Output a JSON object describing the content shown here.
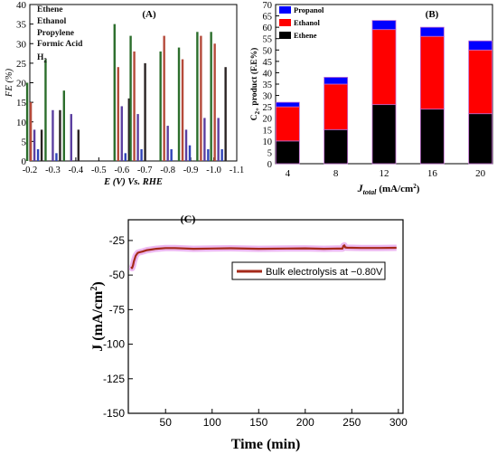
{
  "chart_data": [
    {
      "panel": "(A)",
      "type": "bar",
      "xlabel": "E (V) Vs. RHE",
      "ylabel": "FE (%)",
      "xlim": [
        -0.2,
        -1.1
      ],
      "ylim": [
        0,
        40
      ],
      "xticks": [
        "-0.2",
        "-0.3",
        "-0.4",
        "-0.5",
        "-0.6",
        "-0.7",
        "-0.8",
        "-0.9",
        "-1.0",
        "-1.1"
      ],
      "yticks": [
        "0",
        "5",
        "10",
        "15",
        "20",
        "25",
        "30",
        "35",
        "40"
      ],
      "x": [
        -0.22,
        -0.3,
        -0.38,
        -0.6,
        -0.67,
        -0.8,
        -0.88,
        -0.96,
        -1.02
      ],
      "series": [
        {
          "name": "Ethene",
          "color": "#2c6e2c",
          "values": [
            20,
            26,
            18,
            35,
            32,
            28,
            29,
            33,
            33
          ]
        },
        {
          "name": "Ethanol",
          "color": "#b54a3a",
          "values": [
            15,
            0,
            0,
            24,
            28,
            32,
            26,
            32,
            30
          ]
        },
        {
          "name": "Propylene",
          "color": "#5b3fa0",
          "values": [
            8,
            13,
            12,
            14,
            12,
            9,
            8,
            11,
            11
          ]
        },
        {
          "name": "Formic Acid",
          "color": "#2f43b8",
          "values": [
            3,
            2,
            0,
            2,
            3,
            3,
            4,
            3,
            3
          ]
        },
        {
          "name": "H2",
          "color": "#2a2323",
          "values": [
            8,
            13,
            8,
            16,
            25,
            0,
            0,
            0,
            24
          ]
        }
      ],
      "legend": [
        "Ethene",
        "Ethanol",
        "Propylene",
        "Formic Acid",
        "H"
      ],
      "legend_sub": "2",
      "legend_position": "top-left"
    },
    {
      "panel": "(B)",
      "type": "bar",
      "stacked": true,
      "xlabel": "J",
      "xlabel_sub": "total",
      "xlabel_unit": "(mA/cm",
      "xlabel_unit_sup": "2",
      "xlabel_unit_end": ")",
      "ylabel": "C",
      "ylabel_sub": "2+",
      "ylabel_rest": " product (F.E%)",
      "x": [
        4,
        8,
        12,
        16,
        20
      ],
      "xlim": [
        3,
        21
      ],
      "ylim": [
        0,
        70
      ],
      "xticks": [
        "4",
        "8",
        "12",
        "16",
        "20"
      ],
      "yticks": [
        "0",
        "5",
        "10",
        "15",
        "20",
        "25",
        "30",
        "35",
        "40",
        "45",
        "50",
        "55",
        "60",
        "65",
        "70"
      ],
      "series": [
        {
          "name": "Ethene",
          "color": "#000000",
          "values": [
            10,
            15,
            26,
            24,
            22
          ]
        },
        {
          "name": "Ethanol",
          "color": "#ff0000",
          "values": [
            15,
            20,
            33,
            32,
            28
          ]
        },
        {
          "name": "Propanol",
          "color": "#0000ff",
          "values": [
            2,
            3,
            4,
            4,
            4
          ]
        }
      ],
      "legend": [
        "Propanol",
        "Ethanol",
        "Ethene"
      ],
      "legend_position": "top-left"
    },
    {
      "panel": "(C)",
      "type": "line",
      "xlabel": "Time (min)",
      "ylabel": "J (mA/cm",
      "ylabel_sup": "2",
      "ylabel_end": ")",
      "xlim": [
        10,
        305
      ],
      "ylim": [
        -150,
        -10
      ],
      "xticks": [
        50,
        100,
        150,
        200,
        250,
        300
      ],
      "yticks": [
        -25,
        -50,
        -75,
        -100,
        -125,
        -150
      ],
      "series": [
        {
          "name": "Bulk electrolysis at −0.80V",
          "color": "#a52a1a",
          "x": [
            13,
            14,
            15,
            16,
            17,
            18,
            20,
            22,
            25,
            30,
            35,
            40,
            50,
            60,
            80,
            100,
            120,
            150,
            180,
            200,
            220,
            235,
            240,
            241,
            242,
            243,
            245,
            260,
            280,
            298
          ],
          "y": [
            -44,
            -45,
            -43,
            -40,
            -38,
            -36,
            -34,
            -33.5,
            -33,
            -32,
            -31.5,
            -31,
            -30.5,
            -30.5,
            -31,
            -30.8,
            -30.6,
            -31,
            -30.8,
            -30.7,
            -31,
            -30.8,
            -30.9,
            -29,
            -28.5,
            -30,
            -30.2,
            -30.4,
            -30.4,
            -30.3
          ]
        }
      ],
      "legend_position": "top-right"
    }
  ]
}
